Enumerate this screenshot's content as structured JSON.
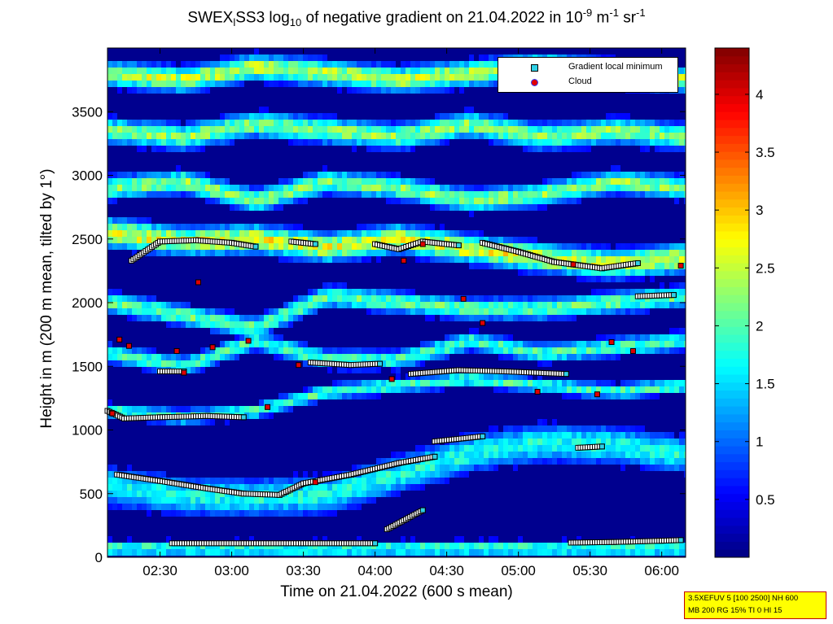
{
  "title_parts": {
    "prefix": "SWEX",
    "sub_l": "l",
    "mid": "SS3 log",
    "sub_10": "10",
    "middle": " of negative gradient on 21.04.2022 in 10",
    "exp1": "-9",
    "units_m": " m",
    "exp2": "-1",
    "units_sr": " sr",
    "exp3": "-1"
  },
  "xlabel": "Time on 21.04.2022 (600 s mean)",
  "ylabel": "Height in m (200 m mean, tilted by 1°)",
  "legend": {
    "item1": "Gradient local minimum",
    "item2": "Cloud"
  },
  "infobox": {
    "line1": "3.5XEFUV 5 [100 2500] NH 600",
    "line2": "MB 200 RG 15% TI 0 HI 15"
  },
  "colors": {
    "gradient_min": "#2fd0e6",
    "cloud": "#e00000",
    "background_low": "#00008f",
    "colormap": "jet"
  },
  "chart_data": {
    "type": "heatmap",
    "x_unit": "time (HH:MM)",
    "xlim": [
      "02:08",
      "06:10"
    ],
    "xticks": [
      "02:30",
      "03:00",
      "03:30",
      "04:00",
      "04:30",
      "05:00",
      "05:30",
      "06:00"
    ],
    "ylim": [
      0,
      4000
    ],
    "yticks": [
      "0",
      "500",
      "1000",
      "1500",
      "2000",
      "2500",
      "3000",
      "3500"
    ],
    "colorbar": {
      "range": [
        0,
        4.4
      ],
      "ticks": [
        "0.5",
        "1",
        "1.5",
        "2",
        "2.5",
        "3",
        "3.5",
        "4"
      ]
    },
    "layers": [
      {
        "times": [
          "02:08",
          "02:40",
          "03:10",
          "03:40",
          "04:10",
          "04:40",
          "05:10",
          "05:40",
          "06:10"
        ],
        "heights": [
          70,
          70,
          70,
          70,
          70,
          70,
          70,
          70,
          70
        ],
        "thickness": 120,
        "level": 2.0
      },
      {
        "times": [
          "02:08",
          "02:40",
          "03:10",
          "03:40",
          "04:10",
          "04:40",
          "05:10",
          "05:40",
          "06:10"
        ],
        "heights": [
          560,
          480,
          470,
          490,
          650,
          820,
          900,
          880,
          800
        ],
        "thickness": 300,
        "level": 1.8
      },
      {
        "times": [
          "02:08",
          "02:40",
          "03:10",
          "03:40",
          "04:10",
          "04:40",
          "05:10",
          "05:40",
          "06:10"
        ],
        "heights": [
          1150,
          1100,
          1150,
          1300,
          1350,
          1400,
          1350,
          1300,
          1350
        ],
        "thickness": 120,
        "level": 2.0
      },
      {
        "times": [
          "02:08",
          "02:40",
          "03:10",
          "03:40",
          "04:10",
          "04:40",
          "05:10",
          "05:40",
          "06:10"
        ],
        "heights": [
          1600,
          1500,
          1700,
          1550,
          1550,
          1700,
          1600,
          1650,
          1700
        ],
        "thickness": 150,
        "level": 2.0
      },
      {
        "times": [
          "02:08",
          "02:40",
          "03:10",
          "03:40",
          "04:10",
          "04:40",
          "05:10",
          "05:40",
          "06:10"
        ],
        "heights": [
          2000,
          1900,
          1800,
          2050,
          2000,
          1950,
          1950,
          2000,
          2050
        ],
        "thickness": 170,
        "level": 2.1
      },
      {
        "times": [
          "02:08",
          "02:40",
          "03:10",
          "03:40",
          "04:10",
          "04:40",
          "05:10",
          "05:40",
          "06:10"
        ],
        "heights": [
          2550,
          2480,
          2500,
          2430,
          2500,
          2420,
          2350,
          2300,
          2350
        ],
        "thickness": 220,
        "level": 2.7
      },
      {
        "times": [
          "02:08",
          "02:40",
          "03:10",
          "03:40",
          "04:10",
          "04:40",
          "05:10",
          "05:40",
          "06:10"
        ],
        "heights": [
          2900,
          2950,
          2800,
          2950,
          2900,
          2800,
          2850,
          2950,
          2900
        ],
        "thickness": 180,
        "level": 2.3
      },
      {
        "times": [
          "02:08",
          "02:40",
          "03:10",
          "03:40",
          "04:10",
          "04:40",
          "05:10",
          "05:40",
          "06:10"
        ],
        "heights": [
          3350,
          3300,
          3400,
          3350,
          3300,
          3400,
          3300,
          3350,
          3300
        ],
        "thickness": 200,
        "level": 2.3
      },
      {
        "times": [
          "02:08",
          "02:40",
          "03:10",
          "03:40",
          "04:10",
          "04:40",
          "05:10",
          "05:40",
          "06:10"
        ],
        "heights": [
          3800,
          3750,
          3850,
          3800,
          3750,
          3800,
          3850,
          3800,
          3750
        ],
        "thickness": 200,
        "level": 2.5
      }
    ],
    "gradient_minimum_tracks": [
      {
        "name_hidden": true,
        "times": [
          "02:35",
          "03:05",
          "03:30",
          "03:50",
          "04:00"
        ],
        "heights": [
          110,
          110,
          110,
          110,
          110
        ]
      },
      {
        "times": [
          "05:22",
          "05:40",
          "06:00",
          "06:08"
        ],
        "heights": [
          115,
          120,
          130,
          135
        ]
      },
      {
        "times": [
          "04:05",
          "04:20"
        ],
        "heights": [
          220,
          370
        ]
      },
      {
        "times": [
          "02:12",
          "02:30",
          "02:50",
          "03:05",
          "03:20",
          "03:30",
          "03:50",
          "04:10",
          "04:25"
        ],
        "heights": [
          650,
          600,
          540,
          500,
          490,
          580,
          650,
          740,
          790
        ]
      },
      {
        "times": [
          "04:25",
          "04:45"
        ],
        "heights": [
          910,
          950
        ]
      },
      {
        "times": [
          "05:25",
          "05:35"
        ],
        "heights": [
          860,
          870
        ]
      },
      {
        "times": [
          "02:08",
          "02:15",
          "02:30",
          "02:50",
          "03:05"
        ],
        "heights": [
          1150,
          1090,
          1100,
          1110,
          1100
        ]
      },
      {
        "times": [
          "02:30",
          "02:40"
        ],
        "heights": [
          1460,
          1460
        ]
      },
      {
        "times": [
          "03:33",
          "03:50",
          "04:02"
        ],
        "heights": [
          1530,
          1510,
          1520
        ]
      },
      {
        "times": [
          "04:15",
          "04:35",
          "04:55",
          "05:20"
        ],
        "heights": [
          1440,
          1470,
          1460,
          1440
        ]
      },
      {
        "times": [
          "02:18",
          "02:30",
          "02:45",
          "03:00",
          "03:10"
        ],
        "heights": [
          2330,
          2480,
          2490,
          2470,
          2440
        ]
      },
      {
        "times": [
          "03:25",
          "03:35"
        ],
        "heights": [
          2480,
          2460
        ]
      },
      {
        "times": [
          "04:00",
          "04:10",
          "04:20",
          "04:35"
        ],
        "heights": [
          2460,
          2420,
          2480,
          2450
        ]
      },
      {
        "times": [
          "04:45",
          "05:00",
          "05:15",
          "05:35",
          "05:50"
        ],
        "heights": [
          2470,
          2400,
          2320,
          2270,
          2310
        ]
      },
      {
        "times": [
          "05:50",
          "06:05"
        ],
        "heights": [
          2050,
          2060
        ]
      }
    ],
    "cloud_points": {
      "times": [
        "02:10",
        "02:13",
        "02:17",
        "02:40",
        "02:46",
        "03:15",
        "03:28",
        "03:35",
        "04:07",
        "04:12",
        "04:20",
        "04:45",
        "05:23",
        "05:33",
        "05:39",
        "05:48",
        "06:08",
        "02:37",
        "02:52",
        "03:07",
        "04:37",
        "05:08"
      ],
      "heights": [
        1130,
        1710,
        1660,
        1450,
        2160,
        1180,
        1510,
        590,
        1400,
        2330,
        2460,
        1840,
        2300,
        1280,
        1690,
        1620,
        2290,
        1620,
        1650,
        1700,
        2030,
        1300
      ]
    }
  }
}
